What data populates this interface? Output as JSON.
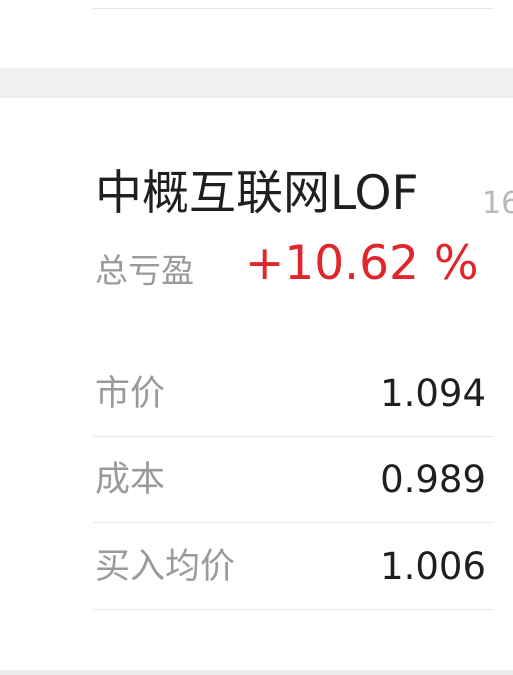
{
  "fund": {
    "name": "中概互联网LOF",
    "code_partial": "16",
    "total_pl_label": "总亏盈",
    "total_pl_value": "+10.62 %",
    "pl_color": "#e0262a"
  },
  "details": [
    {
      "label": "市价",
      "value": "1.094"
    },
    {
      "label": "成本",
      "value": "0.989"
    },
    {
      "label": "买入均价",
      "value": "1.006"
    }
  ]
}
